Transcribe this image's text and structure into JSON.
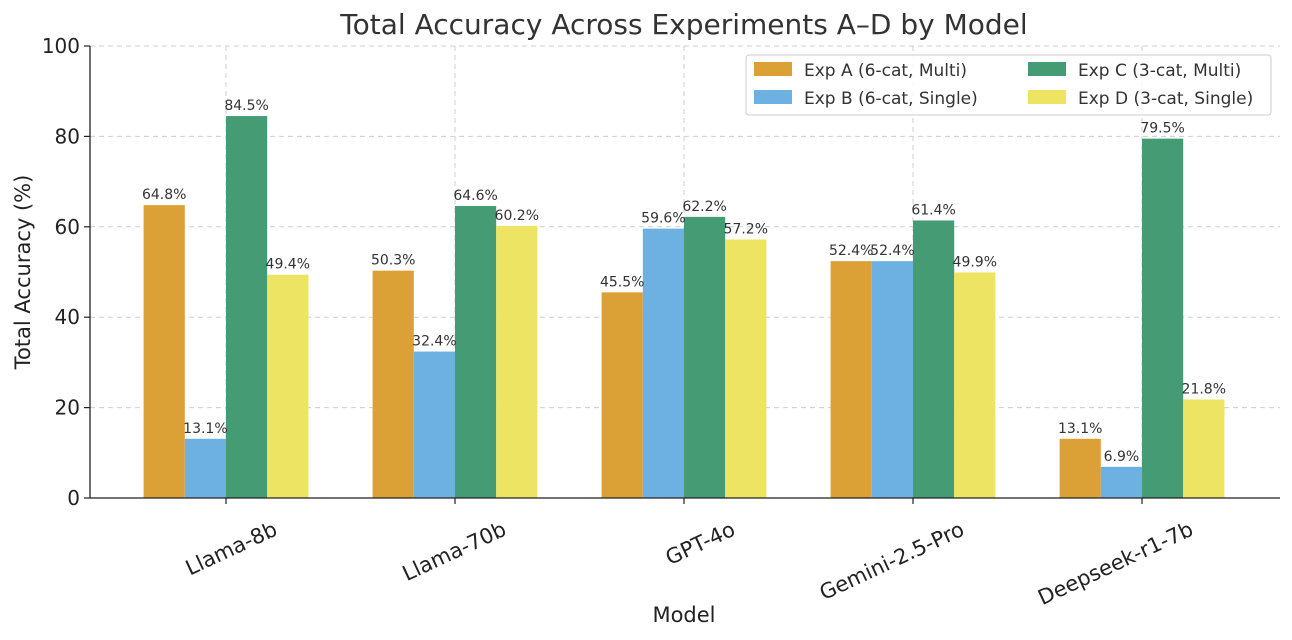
{
  "chart_data": {
    "type": "bar",
    "title": "Total Accuracy Across Experiments A–D by Model",
    "xlabel": "Model",
    "ylabel": "Total Accuracy (%)",
    "ylim": [
      0,
      100
    ],
    "yticks": [
      "0",
      "20",
      "40",
      "60",
      "80",
      "100"
    ],
    "grid": true,
    "legend_position": "top-right",
    "categories": [
      "Llama-8b",
      "Llama-70b",
      "GPT-4o",
      "Gemini-2.5-Pro",
      "Deepseek-r1-7b"
    ],
    "series": [
      {
        "name": "Exp A (6-cat, Multi)",
        "color": "#dba036",
        "values": [
          64.8,
          50.3,
          45.5,
          52.4,
          13.1
        ],
        "labels": [
          "64.8%",
          "50.3%",
          "45.5%",
          "52.4%",
          "13.1%"
        ]
      },
      {
        "name": "Exp B (6-cat, Single)",
        "color": "#6db1e2",
        "values": [
          13.1,
          32.4,
          59.6,
          52.4,
          6.9
        ],
        "labels": [
          "13.1%",
          "32.4%",
          "59.6%",
          "52.4%",
          "6.9%"
        ]
      },
      {
        "name": "Exp C (3-cat, Multi)",
        "color": "#449b74",
        "values": [
          84.5,
          64.6,
          62.2,
          61.4,
          79.5
        ],
        "labels": [
          "84.5%",
          "64.6%",
          "62.2%",
          "61.4%",
          "79.5%"
        ]
      },
      {
        "name": "Exp D (3-cat, Single)",
        "color": "#ece462",
        "values": [
          49.4,
          60.2,
          57.2,
          49.9,
          21.8
        ],
        "labels": [
          "49.4%",
          "60.2%",
          "57.2%",
          "49.9%",
          "21.8%"
        ]
      }
    ]
  }
}
